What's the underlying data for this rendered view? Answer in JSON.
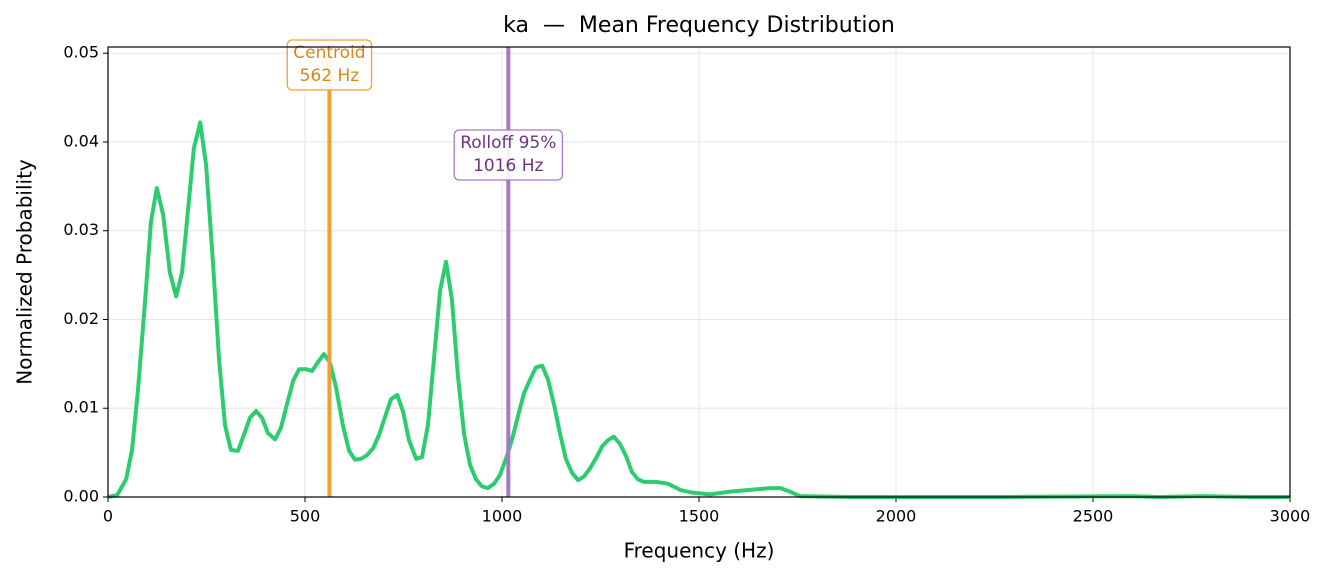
{
  "chart_data": {
    "type": "line",
    "title": "ka  —  Mean Frequency Distribution",
    "xlabel": "Frequency (Hz)",
    "ylabel": "Normalized Probability",
    "xlim": [
      0,
      3000
    ],
    "ylim": [
      0,
      0.0507
    ],
    "xticks": [
      0,
      500,
      1000,
      1500,
      2000,
      2500,
      3000
    ],
    "yticks": [
      {
        "value": 0,
        "label": "0.00"
      },
      {
        "value": 0.01,
        "label": "0.01"
      },
      {
        "value": 0.02,
        "label": "0.02"
      },
      {
        "value": 0.03,
        "label": "0.03"
      },
      {
        "value": 0.04,
        "label": "0.04"
      },
      {
        "value": 0.05,
        "label": "0.05"
      }
    ],
    "grid": true,
    "x": [
      0,
      23,
      46,
      61,
      76,
      94,
      109,
      124,
      140,
      157,
      173,
      188,
      203,
      218,
      234,
      249,
      266,
      282,
      297,
      312,
      330,
      345,
      360,
      376,
      391,
      406,
      424,
      439,
      454,
      470,
      485,
      503,
      518,
      533,
      548,
      563,
      579,
      596,
      612,
      627,
      642,
      657,
      673,
      688,
      703,
      718,
      734,
      749,
      764,
      782,
      797,
      812,
      827,
      843,
      858,
      873,
      888,
      904,
      919,
      934,
      949,
      964,
      980,
      995,
      1010,
      1025,
      1041,
      1056,
      1071,
      1086,
      1102,
      1117,
      1132,
      1147,
      1162,
      1178,
      1193,
      1208,
      1223,
      1239,
      1254,
      1269,
      1284,
      1299,
      1315,
      1330,
      1345,
      1360,
      1391,
      1421,
      1452,
      1482,
      1528,
      1579,
      1629,
      1680,
      1706,
      1731,
      1756,
      1883,
      2264,
      2594,
      2670,
      2772,
      2898,
      3000
    ],
    "series": [
      {
        "color": "#2ecc71",
        "values": [
          0,
          0.0002,
          0.002,
          0.0053,
          0.012,
          0.022,
          0.031,
          0.0348,
          0.0318,
          0.0253,
          0.0226,
          0.0253,
          0.0323,
          0.0393,
          0.0422,
          0.0374,
          0.0267,
          0.0154,
          0.0081,
          0.0053,
          0.0052,
          0.007,
          0.0089,
          0.0097,
          0.0089,
          0.0072,
          0.0065,
          0.0078,
          0.0104,
          0.0131,
          0.0144,
          0.0144,
          0.0142,
          0.0152,
          0.0161,
          0.0152,
          0.0123,
          0.0081,
          0.0052,
          0.0042,
          0.0043,
          0.0047,
          0.0055,
          0.007,
          0.009,
          0.011,
          0.0115,
          0.0096,
          0.0064,
          0.0043,
          0.0045,
          0.0081,
          0.0154,
          0.0233,
          0.0265,
          0.0222,
          0.0137,
          0.007,
          0.0036,
          0.002,
          0.0012,
          0.001,
          0.0015,
          0.0025,
          0.0043,
          0.0064,
          0.0092,
          0.0117,
          0.0132,
          0.0146,
          0.0148,
          0.0132,
          0.0104,
          0.0072,
          0.0043,
          0.0027,
          0.0019,
          0.0023,
          0.0032,
          0.0044,
          0.0057,
          0.0064,
          0.0068,
          0.006,
          0.0046,
          0.0028,
          0.002,
          0.0017,
          0.0017,
          0.0015,
          0.0008,
          0.0005,
          0.0003,
          0.0006,
          0.0008,
          0.001,
          0.001,
          0.0006,
          0.0001,
          0,
          0,
          0.0001,
          0,
          0.0001,
          0,
          0
        ]
      }
    ],
    "annotations": [
      {
        "x": 562,
        "color": "#f0a030",
        "text_color": "#d4881a",
        "lines": [
          "Centroid",
          "562 Hz"
        ]
      },
      {
        "x": 1016,
        "color": "#a678c8",
        "text_color": "#6c3483",
        "lines": [
          "Rolloff 95%",
          "1016 Hz"
        ]
      }
    ]
  }
}
